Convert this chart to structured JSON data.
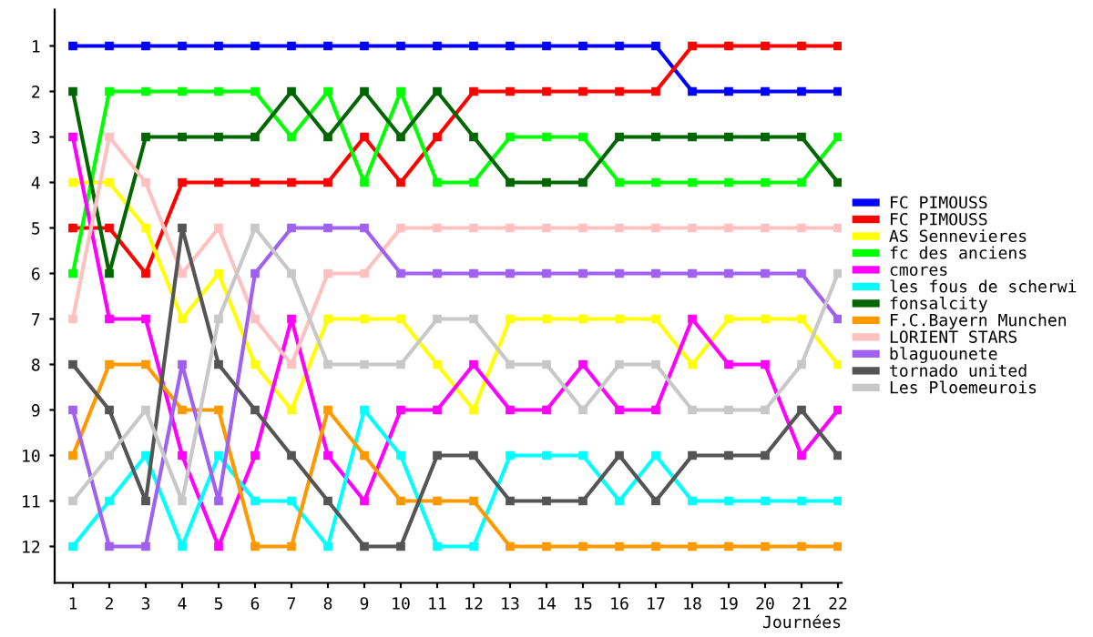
{
  "chart_data": {
    "type": "line",
    "xlabel": "Journées",
    "x": [
      1,
      2,
      3,
      4,
      5,
      6,
      7,
      8,
      9,
      10,
      11,
      12,
      13,
      14,
      15,
      16,
      17,
      18,
      19,
      20,
      21,
      22
    ],
    "xlim": [
      0.5,
      22.1
    ],
    "xticks": [
      1,
      2,
      3,
      4,
      5,
      6,
      7,
      8,
      9,
      10,
      11,
      12,
      13,
      14,
      15,
      16,
      17,
      18,
      19,
      20,
      21,
      22
    ],
    "ylim": [
      12.8,
      0.2
    ],
    "yticks": [
      1,
      2,
      3,
      4,
      5,
      6,
      7,
      8,
      9,
      10,
      11,
      12
    ],
    "marker": "square",
    "line_style": "solid",
    "grid": false,
    "legend": "right",
    "series": [
      {
        "name": "FC PIMOUSS",
        "color": "#0000ff",
        "values": [
          1,
          1,
          1,
          1,
          1,
          1,
          1,
          1,
          1,
          1,
          1,
          1,
          1,
          1,
          1,
          1,
          1,
          2,
          2,
          2,
          2,
          2
        ]
      },
      {
        "name": "FC PIMOUSS",
        "color": "#ff0000",
        "values": [
          5,
          5,
          6,
          4,
          4,
          4,
          4,
          4,
          3,
          4,
          3,
          2,
          2,
          2,
          2,
          2,
          2,
          1,
          1,
          1,
          1,
          1
        ]
      },
      {
        "name": "AS Sennevieres",
        "color": "#ffff00",
        "values": [
          4,
          4,
          5,
          7,
          6,
          8,
          9,
          7,
          7,
          7,
          8,
          9,
          7,
          7,
          7,
          7,
          7,
          8,
          7,
          7,
          7,
          8
        ]
      },
      {
        "name": "fc des anciens",
        "color": "#00ff00",
        "values": [
          6,
          2,
          2,
          2,
          2,
          2,
          3,
          2,
          4,
          2,
          4,
          4,
          3,
          3,
          3,
          4,
          4,
          4,
          4,
          4,
          4,
          3
        ]
      },
      {
        "name": "cmores",
        "color": "#ff00ff",
        "values": [
          3,
          7,
          7,
          10,
          12,
          10,
          7,
          10,
          11,
          9,
          9,
          8,
          9,
          9,
          8,
          9,
          9,
          7,
          8,
          8,
          10,
          9
        ]
      },
      {
        "name": "les fous de scherwi",
        "color": "#00ffff",
        "values": [
          12,
          11,
          10,
          12,
          10,
          11,
          11,
          12,
          9,
          10,
          12,
          12,
          10,
          10,
          10,
          11,
          10,
          11,
          11,
          11,
          11,
          11
        ]
      },
      {
        "name": "fonsalcity",
        "color": "#006600",
        "values": [
          2,
          6,
          3,
          3,
          3,
          3,
          2,
          3,
          2,
          3,
          2,
          3,
          4,
          4,
          4,
          3,
          3,
          3,
          3,
          3,
          3,
          4
        ]
      },
      {
        "name": "F.C.Bayern Munchen",
        "color": "#ff9900",
        "values": [
          10,
          8,
          8,
          9,
          9,
          12,
          12,
          9,
          10,
          11,
          11,
          11,
          12,
          12,
          12,
          12,
          12,
          12,
          12,
          12,
          12,
          12
        ]
      },
      {
        "name": "LORIENT STARS",
        "color": "#ffc0c0",
        "values": [
          7,
          3,
          4,
          6,
          5,
          7,
          8,
          6,
          6,
          5,
          5,
          5,
          5,
          5,
          5,
          5,
          5,
          5,
          5,
          5,
          5,
          5
        ]
      },
      {
        "name": "blaguounete",
        "color": "#a060f0",
        "values": [
          9,
          12,
          12,
          8,
          11,
          6,
          5,
          5,
          5,
          6,
          6,
          6,
          6,
          6,
          6,
          6,
          6,
          6,
          6,
          6,
          6,
          7
        ]
      },
      {
        "name": "tornado united",
        "color": "#555555",
        "values": [
          8,
          9,
          11,
          5,
          8,
          9,
          10,
          11,
          12,
          12,
          10,
          10,
          11,
          11,
          11,
          10,
          11,
          10,
          10,
          10,
          9,
          10
        ]
      },
      {
        "name": "Les Ploemeurois",
        "color": "#c8c8c8",
        "values": [
          11,
          10,
          9,
          11,
          7,
          5,
          6,
          8,
          8,
          8,
          7,
          7,
          8,
          8,
          9,
          8,
          8,
          9,
          9,
          9,
          8,
          6
        ]
      }
    ]
  }
}
